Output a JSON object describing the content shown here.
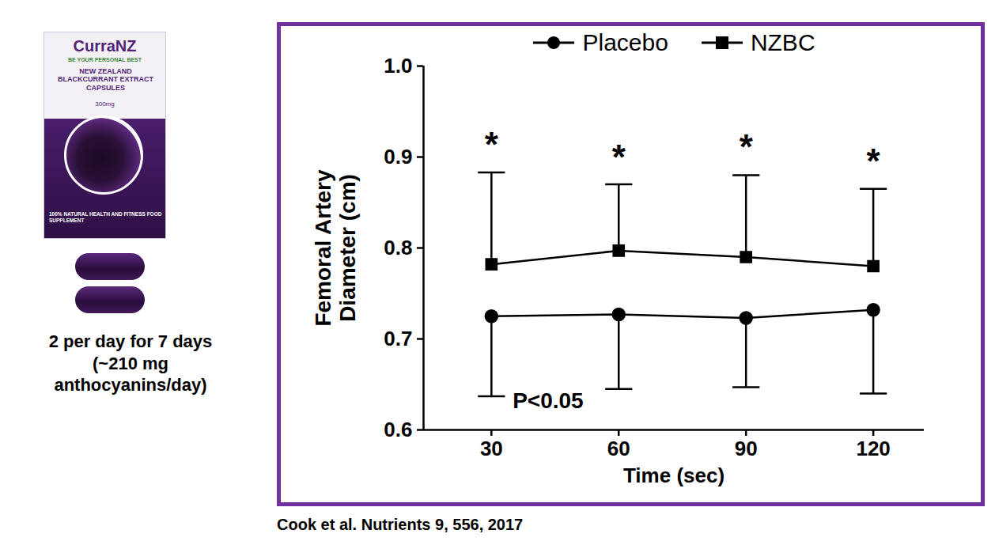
{
  "side_panel": {
    "product_texts": [
      "CurraNZ",
      "BE YOUR PERSONAL BEST",
      "NEW ZEALAND BLACKCURRANT EXTRACT CAPSULES",
      "300mg",
      "100% NATURAL HEALTH AND FITNESS FOOD SUPPLEMENT"
    ],
    "dosage": [
      "2 per day for 7 days",
      "(~210 mg",
      "anthocyanins/day)"
    ]
  },
  "caption": "Cook et al. Nutrients 9, 556, 2017",
  "chart_data": {
    "type": "line",
    "x_label": "Time (sec)",
    "y_label": "Femoral Artery Diameter (cm)",
    "x": [
      30,
      60,
      90,
      120
    ],
    "xlim": [
      14,
      132
    ],
    "xticks": [
      30,
      60,
      90,
      120
    ],
    "ylim": [
      0.6,
      1
    ],
    "yticks": [
      0.6,
      0.7,
      0.8,
      0.9,
      {
        "value": 1,
        "label": "1.0"
      }
    ],
    "grid": false,
    "legend": "top",
    "series": [
      {
        "name": "Placebo",
        "color": "#000000",
        "marker": "circle",
        "values": [
          0.725,
          0.727,
          0.723,
          0.732
        ],
        "error_minus": [
          0.088,
          0.082,
          0.076,
          0.092
        ]
      },
      {
        "name": "NZBC",
        "color": "#000000",
        "marker": "square",
        "values": [
          0.782,
          0.797,
          0.79,
          0.78
        ],
        "error_plus": [
          0.101,
          0.073,
          0.09,
          0.085
        ]
      }
    ],
    "annotations": [
      {
        "text": "*",
        "x": 30,
        "y": 0.92
      },
      {
        "text": "*",
        "x": 60,
        "y": 0.906
      },
      {
        "text": "*",
        "x": 90,
        "y": 0.917
      },
      {
        "text": "*",
        "x": 120,
        "y": 0.901
      },
      {
        "text": "P<0.05",
        "x": 35,
        "y": 0.632
      }
    ]
  }
}
